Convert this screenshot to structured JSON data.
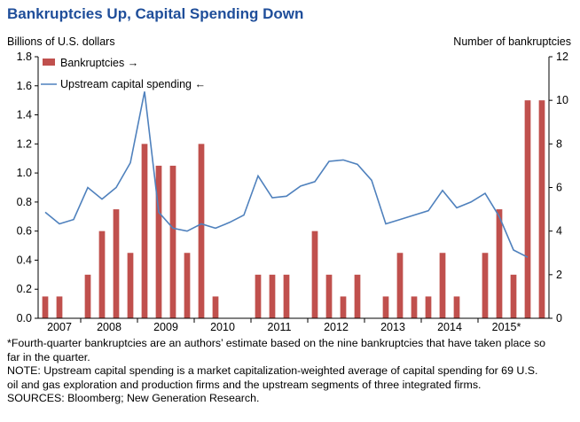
{
  "header": {
    "title": "Bankruptcies Up, Capital Spending Down",
    "left_axis_caption": "Billions of U.S. dollars",
    "right_axis_caption": "Number of bankruptcies"
  },
  "legend": {
    "bar_label": "Bankruptcies →",
    "line_label": "Upstream capital spending ←"
  },
  "colors": {
    "bar": "#c0504d",
    "line": "#4f81bd",
    "title": "#1f4e9a"
  },
  "chart_data": {
    "type": "bar",
    "title": "Bankruptcies Up, Capital Spending Down",
    "ylabel_left": "Billions of U.S. dollars",
    "ylabel_right": "Number of bankruptcies",
    "ylim_left": [
      0,
      1.8
    ],
    "yticks_left": [
      "0.0",
      "0.2",
      "0.4",
      "0.6",
      "0.8",
      "1.0",
      "1.2",
      "1.4",
      "1.6",
      "1.8"
    ],
    "ylim_right": [
      0,
      12
    ],
    "yticks_right": [
      "0",
      "2",
      "4",
      "6",
      "8",
      "10",
      "12"
    ],
    "x_year_labels": [
      "2007",
      "2008",
      "2009",
      "2010",
      "2011",
      "2012",
      "2013",
      "2014",
      "2015*"
    ],
    "grid": false,
    "legend_position": "top-left",
    "series": [
      {
        "name": "Bankruptcies",
        "type": "bar",
        "axis": "right",
        "values": [
          1,
          1,
          0,
          2,
          4,
          5,
          3,
          8,
          7,
          7,
          3,
          8,
          1,
          0,
          0,
          2,
          2,
          2,
          0,
          4,
          2,
          1,
          2,
          0,
          1,
          3,
          1,
          1,
          3,
          1,
          0,
          3,
          5,
          2,
          10,
          10
        ]
      },
      {
        "name": "Upstream capital spending",
        "type": "line",
        "axis": "left",
        "values": [
          0.73,
          0.65,
          0.68,
          0.9,
          0.82,
          0.9,
          1.07,
          1.56,
          0.73,
          0.62,
          0.6,
          0.65,
          0.62,
          0.66,
          0.71,
          0.98,
          0.83,
          0.84,
          0.91,
          0.94,
          1.08,
          1.09,
          1.06,
          0.95,
          0.65,
          0.68,
          0.71,
          0.74,
          0.88,
          0.76,
          0.8,
          0.86,
          0.7,
          0.47,
          0.42,
          null
        ]
      }
    ]
  },
  "notes": {
    "footnote": "*Fourth-quarter bankruptcies are an authors’ estimate based on the nine bankruptcies that have taken place so far in the quarter.",
    "note": "NOTE: Upstream capital spending is a market capitalization-weighted average of capital spending for 69 U.S. oil and gas exploration and production firms and the upstream segments of three integrated firms.",
    "sources": "SOURCES: Bloomberg; New Generation Research."
  }
}
